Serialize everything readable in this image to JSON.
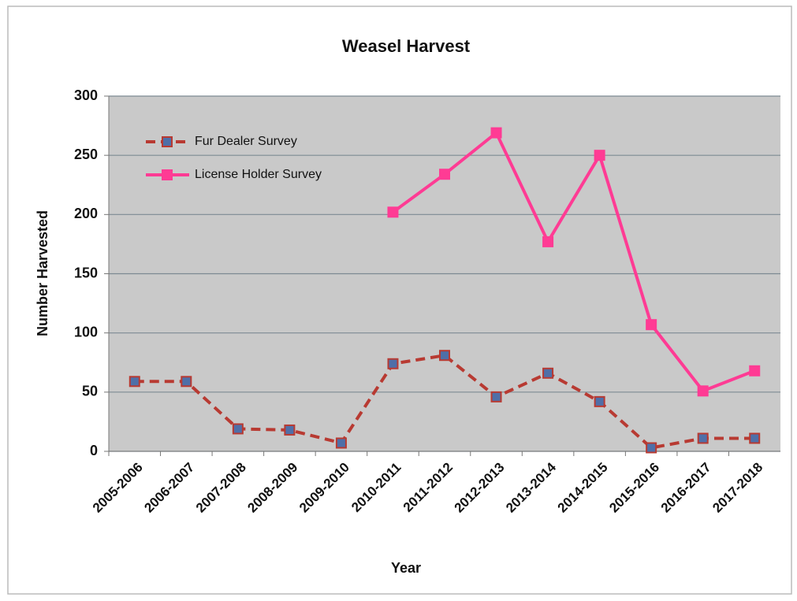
{
  "chart_data": {
    "type": "line",
    "title": "Weasel Harvest",
    "x_label": "Year",
    "y_label": "Number Harvested",
    "categories": [
      "2005-2006",
      "2006-2007",
      "2007-2008",
      "2008-2009",
      "2009-2010",
      "2010-2011",
      "2011-2012",
      "2012-2013",
      "2013-2014",
      "2014-2015",
      "2015-2016",
      "2016-2017",
      "2017-2018"
    ],
    "series": [
      {
        "name": "Fur Dealer Survey",
        "color": "#b83a32",
        "marker_color": "#4f6fa8",
        "dashed": true,
        "values": [
          59,
          59,
          19,
          18,
          7,
          74,
          81,
          46,
          66,
          42,
          3,
          11,
          11
        ]
      },
      {
        "name": "License Holder Survey",
        "color": "#ff3b94",
        "marker_color": "#ff3b94",
        "dashed": false,
        "values": [
          null,
          null,
          null,
          null,
          null,
          202,
          234,
          269,
          177,
          250,
          107,
          51,
          68
        ]
      }
    ],
    "ylim": [
      0,
      300
    ],
    "yticks": [
      0,
      50,
      100,
      150,
      200,
      250,
      300
    ],
    "grid": true,
    "legend": "upper left"
  }
}
